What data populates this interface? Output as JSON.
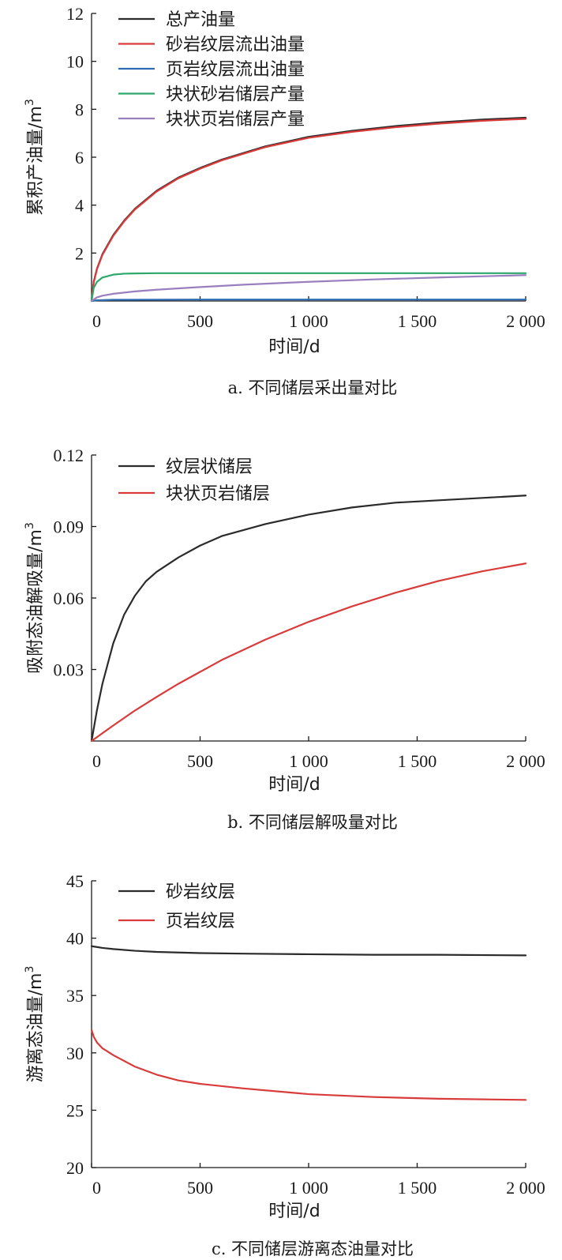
{
  "chart_data": [
    {
      "type": "line",
      "xlabel": "时间/d",
      "ylabel": "累积产油量/m",
      "ylabel_sup": "3",
      "caption": "a. 不同储层采出量对比",
      "xlim": [
        0,
        2000
      ],
      "ylim": [
        0,
        12
      ],
      "x_ticks": [
        0,
        500,
        1000,
        1500,
        2000
      ],
      "x_tick_labels": [
        "0",
        "500",
        "1 000",
        "1 500",
        "2 000"
      ],
      "y_ticks": [
        2,
        4,
        6,
        8,
        10,
        12
      ],
      "y_tick_labels": [
        "2",
        "4",
        "6",
        "8",
        "10",
        "12"
      ],
      "legend_position": "top-left",
      "series": [
        {
          "name": "总产油量",
          "color": "#2b2b2b",
          "x": [
            0,
            10,
            25,
            50,
            100,
            150,
            200,
            300,
            400,
            500,
            600,
            800,
            1000,
            1200,
            1400,
            1600,
            1800,
            2000
          ],
          "y": [
            0,
            0.8,
            1.35,
            1.95,
            2.75,
            3.35,
            3.85,
            4.6,
            5.15,
            5.55,
            5.9,
            6.45,
            6.85,
            7.1,
            7.3,
            7.45,
            7.57,
            7.65
          ]
        },
        {
          "name": "砂岩纹层流出油量",
          "color": "#d93b3b",
          "x": [
            0,
            10,
            25,
            50,
            100,
            150,
            200,
            300,
            400,
            500,
            600,
            800,
            1000,
            1200,
            1400,
            1600,
            1800,
            2000
          ],
          "y": [
            0,
            0.78,
            1.33,
            1.92,
            2.72,
            3.32,
            3.82,
            4.57,
            5.12,
            5.52,
            5.87,
            6.42,
            6.81,
            7.06,
            7.25,
            7.4,
            7.52,
            7.6
          ]
        },
        {
          "name": "页岩纹层流出油量",
          "color": "#2e6db4",
          "x": [
            0,
            25,
            100,
            500,
            1000,
            1500,
            2000
          ],
          "y": [
            0,
            0.03,
            0.05,
            0.06,
            0.06,
            0.06,
            0.06
          ]
        },
        {
          "name": "块状砂岩储层产量",
          "color": "#2ea86a",
          "x": [
            0,
            10,
            25,
            50,
            100,
            150,
            200,
            300,
            500,
            1000,
            1500,
            2000
          ],
          "y": [
            0,
            0.55,
            0.8,
            0.98,
            1.1,
            1.14,
            1.15,
            1.16,
            1.16,
            1.16,
            1.16,
            1.16
          ]
        },
        {
          "name": "块状页岩储层产量",
          "color": "#9a7fbf",
          "x": [
            0,
            25,
            50,
            100,
            200,
            300,
            500,
            700,
            1000,
            1300,
            1600,
            2000
          ],
          "y": [
            0,
            0.15,
            0.22,
            0.3,
            0.4,
            0.47,
            0.58,
            0.68,
            0.8,
            0.9,
            0.98,
            1.08
          ]
        }
      ]
    },
    {
      "type": "line",
      "xlabel": "时间/d",
      "ylabel": "吸附态油解吸量/m",
      "ylabel_sup": "3",
      "caption": "b. 不同储层解吸量对比",
      "xlim": [
        0,
        2000
      ],
      "ylim": [
        0,
        0.12
      ],
      "x_ticks": [
        0,
        500,
        1000,
        1500,
        2000
      ],
      "x_tick_labels": [
        "0",
        "500",
        "1 000",
        "1 500",
        "2 000"
      ],
      "y_ticks": [
        0.03,
        0.06,
        0.09,
        0.12
      ],
      "y_tick_labels": [
        "0.03",
        "0.06",
        "0.09",
        "0.12"
      ],
      "legend_position": "top-left",
      "series": [
        {
          "name": "纹层状储层",
          "color": "#2b2b2b",
          "x": [
            0,
            25,
            50,
            100,
            150,
            200,
            250,
            300,
            400,
            500,
            600,
            800,
            1000,
            1200,
            1400,
            1600,
            1800,
            2000
          ],
          "y": [
            0,
            0.013,
            0.024,
            0.041,
            0.053,
            0.061,
            0.067,
            0.071,
            0.077,
            0.082,
            0.086,
            0.091,
            0.095,
            0.098,
            0.1,
            0.101,
            0.102,
            0.103
          ]
        },
        {
          "name": "块状页岩储层",
          "color": "#d93b3b",
          "x": [
            0,
            100,
            200,
            300,
            400,
            500,
            600,
            800,
            1000,
            1200,
            1400,
            1600,
            1800,
            2000
          ],
          "y": [
            0,
            0.0065,
            0.0128,
            0.0185,
            0.024,
            0.029,
            0.034,
            0.0425,
            0.05,
            0.0565,
            0.0622,
            0.0672,
            0.0712,
            0.0745
          ]
        }
      ]
    },
    {
      "type": "line",
      "xlabel": "时间/d",
      "ylabel": "游离态油量/m",
      "ylabel_sup": "3",
      "caption": "c. 不同储层游离态油量对比",
      "xlim": [
        0,
        2000
      ],
      "ylim": [
        20,
        45
      ],
      "x_ticks": [
        0,
        500,
        1000,
        1500,
        2000
      ],
      "x_tick_labels": [
        "0",
        "500",
        "1 000",
        "1 500",
        "2 000"
      ],
      "y_ticks": [
        20,
        25,
        30,
        35,
        40,
        45
      ],
      "y_tick_labels": [
        "20",
        "25",
        "30",
        "35",
        "40",
        "45"
      ],
      "legend_position": "top-left",
      "series": [
        {
          "name": "砂岩纹层",
          "color": "#2b2b2b",
          "x": [
            0,
            50,
            100,
            200,
            300,
            500,
            700,
            1000,
            1300,
            1600,
            2000
          ],
          "y": [
            39.3,
            39.15,
            39.05,
            38.9,
            38.8,
            38.7,
            38.65,
            38.6,
            38.55,
            38.55,
            38.5
          ]
        },
        {
          "name": "页岩纹层",
          "color": "#d93b3b",
          "x": [
            0,
            10,
            25,
            50,
            100,
            200,
            300,
            400,
            500,
            700,
            1000,
            1300,
            1600,
            2000
          ],
          "y": [
            32.0,
            31.4,
            30.9,
            30.4,
            29.8,
            28.8,
            28.1,
            27.6,
            27.3,
            26.9,
            26.4,
            26.15,
            26.0,
            25.9
          ]
        }
      ]
    }
  ]
}
